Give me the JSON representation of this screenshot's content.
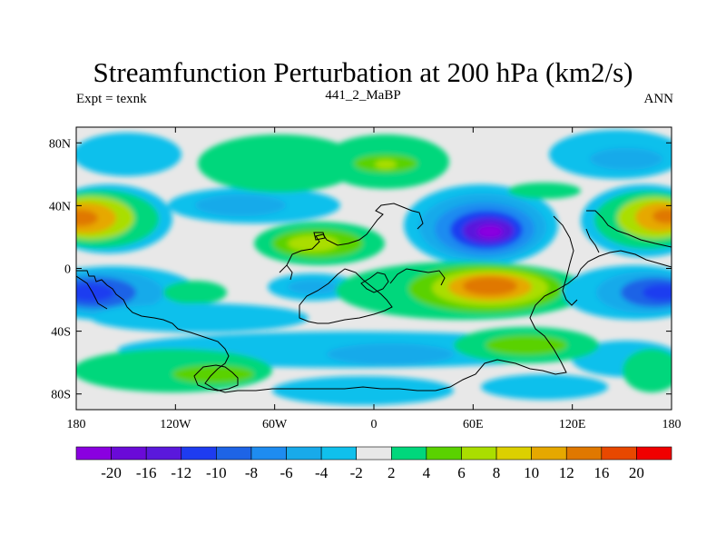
{
  "title": "Streamfunction Perturbation at 200 hPa (km2/s)",
  "left_label": "Expt = texnk",
  "center_label": "441_2_MaBP",
  "right_label": "ANN",
  "map": {
    "lon_range": [
      -180,
      180
    ],
    "lat_range": [
      -90,
      90
    ],
    "lat_ticks": [
      {
        "value": 80,
        "label": "80N"
      },
      {
        "value": 40,
        "label": "40N"
      },
      {
        "value": 0,
        "label": "0"
      },
      {
        "value": -40,
        "label": "40S"
      },
      {
        "value": -80,
        "label": "80S"
      }
    ],
    "lon_ticks": [
      {
        "value": -180,
        "label": "180"
      },
      {
        "value": -120,
        "label": "120W"
      },
      {
        "value": -60,
        "label": "60W"
      },
      {
        "value": 0,
        "label": "0"
      },
      {
        "value": 60,
        "label": "60E"
      },
      {
        "value": 120,
        "label": "120E"
      },
      {
        "value": 180,
        "label": "180"
      }
    ],
    "field_background": "#e8e8e8",
    "coast_color": "#000000"
  },
  "colorbar": {
    "colors": [
      "#8a00e0",
      "#6a0ad8",
      "#5a18dc",
      "#1e3cf0",
      "#1e64e6",
      "#1e8cf0",
      "#18aaea",
      "#10c0ec",
      "#e8e8e8",
      "#00d77c",
      "#5ad200",
      "#aade00",
      "#dcd000",
      "#e6a800",
      "#e07800",
      "#e84800",
      "#f00000"
    ],
    "labels": [
      "-20",
      "-16",
      "-12",
      "-10",
      "-8",
      "-6",
      "-4",
      "-2",
      "2",
      "4",
      "6",
      "8",
      "10",
      "12",
      "16",
      "20"
    ]
  }
}
